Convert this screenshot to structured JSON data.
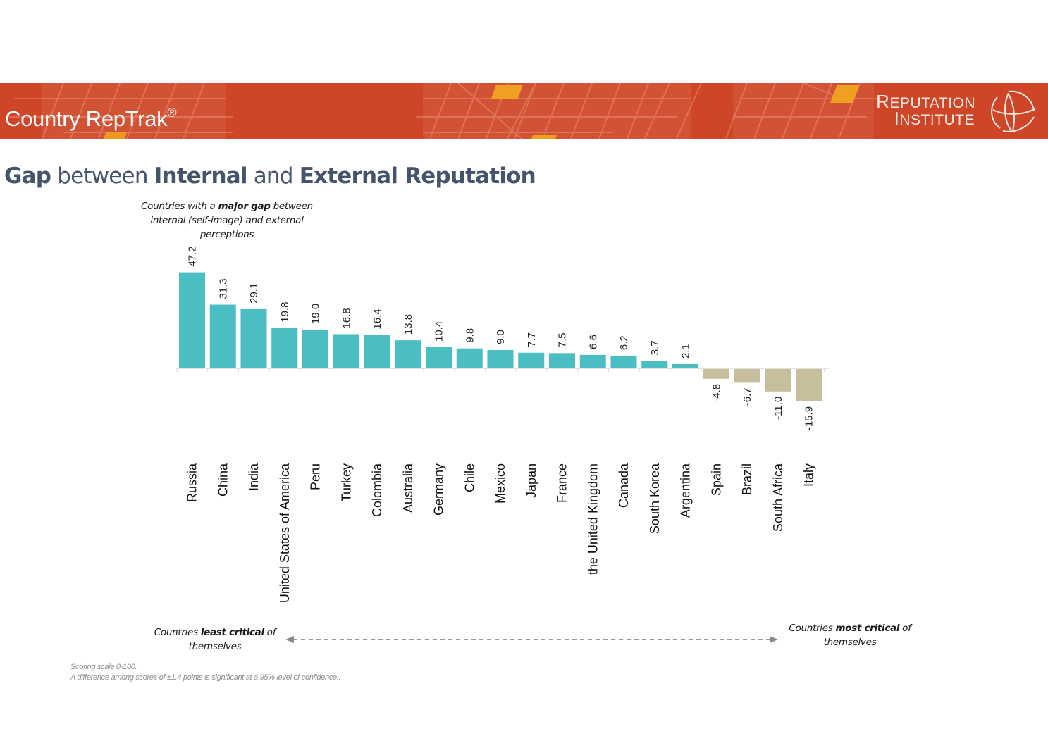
{
  "header": {
    "product_title": "Country RepTrak",
    "product_mark": "®",
    "brand_name_line1": "Reputation",
    "brand_name_line2": "Institute",
    "brand_icon": "globe-icon",
    "banner_color": "#cf4527",
    "accent_color": "#f0a020"
  },
  "slide": {
    "title_parts": [
      {
        "text": "Gap",
        "bold": true
      },
      {
        "text": " between ",
        "bold": false
      },
      {
        "text": "Internal",
        "bold": true
      },
      {
        "text": " and ",
        "bold": false
      },
      {
        "text": "External Reputation",
        "bold": true
      }
    ],
    "title_color": "#44546a"
  },
  "annotations": {
    "top_pre": "Countries with a ",
    "top_bold": "major gap",
    "top_post": " between internal (self-image) and external perceptions",
    "left_pre": "Countries ",
    "left_bold": "least critical",
    "left_post": " of themselves",
    "right_pre": "Countries ",
    "right_bold": "most critical",
    "right_post": " of themselves",
    "arrow": "double-headed-dashed-arrow"
  },
  "footnotes": [
    "Scoring scale 0-100.",
    "A difference among scores of ±1.4 points is significant at a 95% level of confidence.."
  ],
  "chart_data": {
    "type": "bar",
    "title": "Gap between Internal and External Reputation",
    "xlabel": "",
    "ylabel": "",
    "categories": [
      "Russia",
      "China",
      "India",
      "United States of America",
      "Peru",
      "Turkey",
      "Colombia",
      "Australia",
      "Germany",
      "Chile",
      "Mexico",
      "Japan",
      "France",
      "the United Kingdom",
      "Canada",
      "South Korea",
      "Argentina",
      "Spain",
      "Brazil",
      "South Africa",
      "Italy"
    ],
    "values": [
      47.2,
      31.3,
      29.1,
      19.8,
      19.0,
      16.8,
      16.4,
      13.8,
      10.4,
      9.8,
      9.0,
      7.7,
      7.5,
      6.6,
      6.2,
      3.7,
      2.1,
      -4.8,
      -6.7,
      -11.0,
      -15.9
    ],
    "labels": [
      "47.2",
      "31.3",
      "29.1",
      "19.8",
      "19.0",
      "16.8",
      "16.4",
      "13.8",
      "10.4",
      "9.8",
      "9.0",
      "7.7",
      "7.5",
      "6.6",
      "6.2",
      "3.7",
      "2.1",
      "-4.8",
      "-6.7",
      "-11.0",
      "-15.9"
    ],
    "ylim": [
      -20,
      50
    ],
    "grid": false,
    "legend": "none",
    "data_labels": "rotated vertical",
    "colors": {
      "positive": "#4bbec4",
      "negative": "#c7bf9c",
      "axis": "#d9d9d9"
    }
  }
}
